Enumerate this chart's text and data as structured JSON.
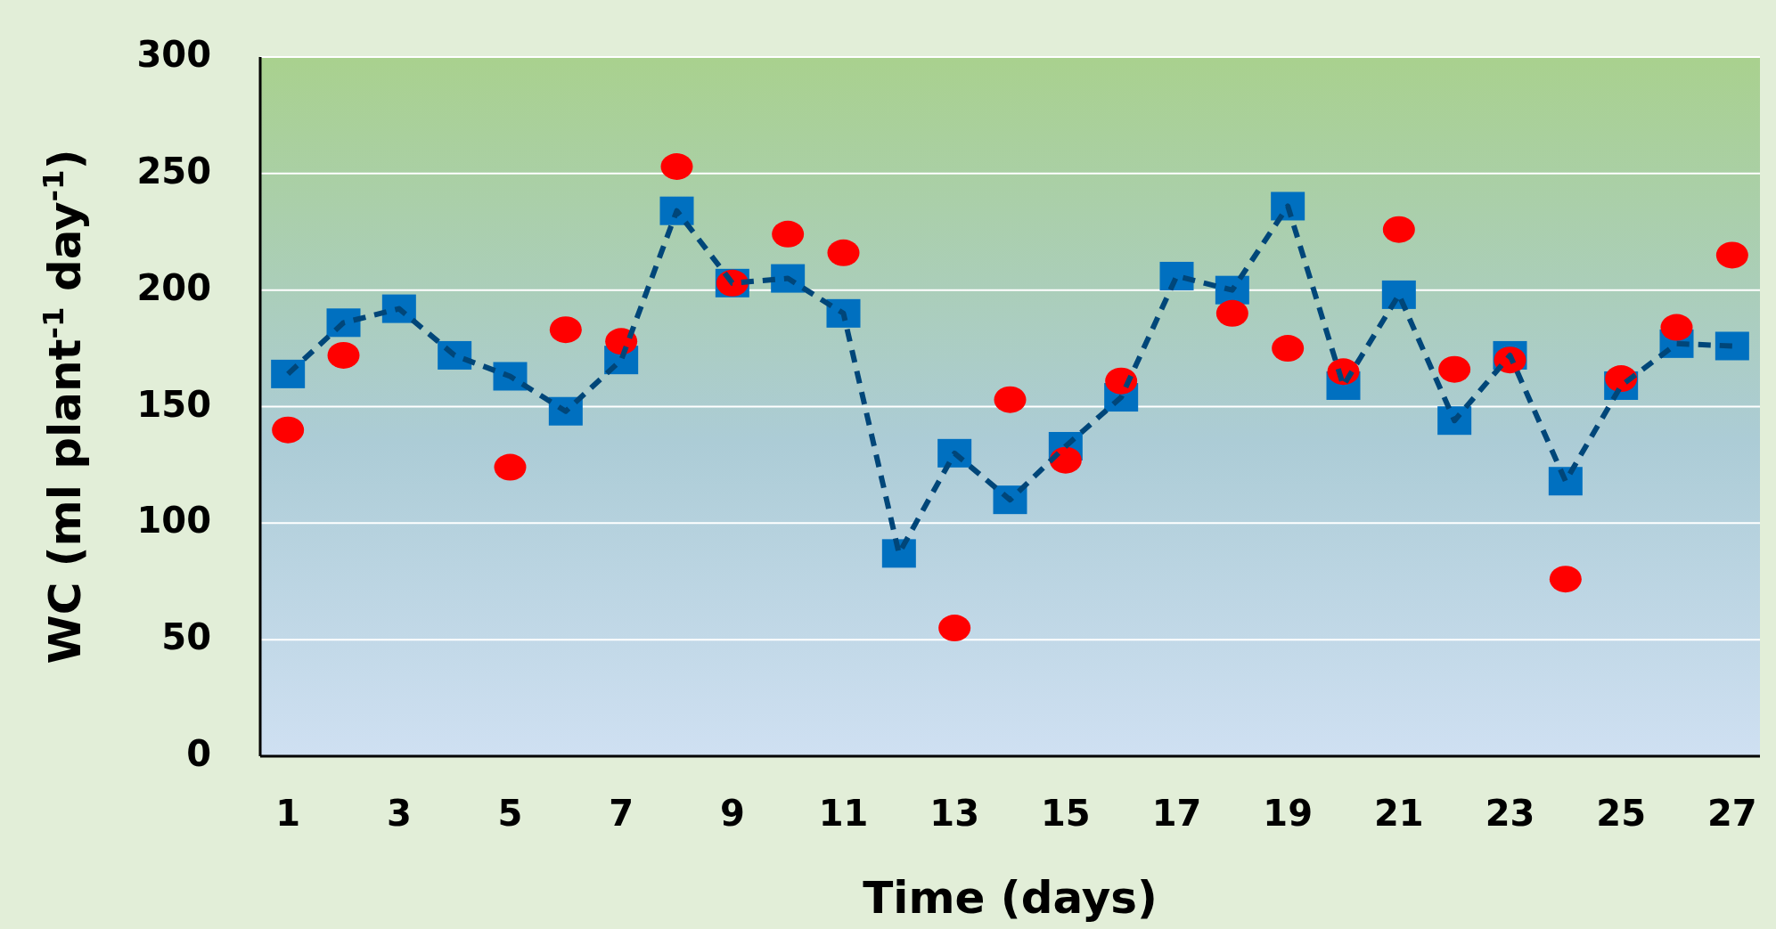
{
  "chart_data": {
    "type": "line",
    "xlabel": "Time (days)",
    "ylabel": "WC (ml plant$^{-1}$ day$^{-1}$)",
    "x": [
      1,
      2,
      3,
      4,
      5,
      6,
      7,
      8,
      9,
      10,
      11,
      12,
      13,
      14,
      15,
      16,
      17,
      18,
      19,
      20,
      21,
      22,
      23,
      24,
      25,
      26,
      27
    ],
    "xlim": [
      0.5,
      27.5
    ],
    "xticks": [
      1,
      3,
      5,
      7,
      9,
      11,
      13,
      15,
      17,
      19,
      21,
      23,
      25,
      27
    ],
    "ylim": [
      0,
      300
    ],
    "yticks": [
      0,
      50,
      100,
      150,
      200,
      250,
      300
    ],
    "grid": "y",
    "series": [
      {
        "color": "#0070c0",
        "marker": "square",
        "line_style": "dashed",
        "values": [
          164,
          186,
          192,
          172,
          163,
          148,
          170,
          234,
          203,
          205,
          190,
          87,
          130,
          110,
          133,
          154,
          206,
          200,
          236,
          159,
          198,
          144,
          172,
          118,
          159,
          177,
          176
        ]
      },
      {
        "type": "scatter",
        "color": "#ff0000",
        "marker": "circle",
        "values": [
          140,
          172,
          null,
          null,
          124,
          183,
          178,
          253,
          203,
          224,
          216,
          null,
          55,
          153,
          127,
          161,
          null,
          190,
          175,
          165,
          226,
          166,
          170,
          76,
          162,
          184,
          215
        ]
      }
    ]
  }
}
